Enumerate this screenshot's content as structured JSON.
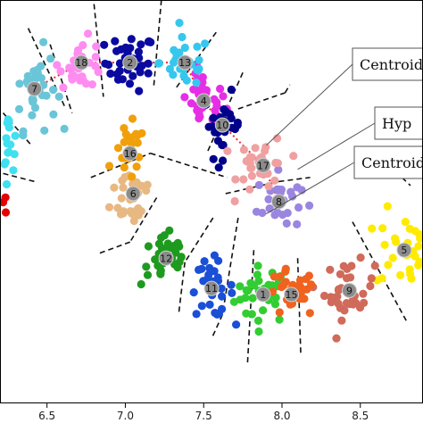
{
  "chart_data": {
    "type": "scatter",
    "xlim": [
      6.2,
      8.9
    ],
    "ylim": [
      0,
      1
    ],
    "x_ticks": [
      "6.5",
      "7.0",
      "7.5",
      "8.0",
      "8.5"
    ],
    "x_tick_values": [
      6.5,
      7.0,
      7.5,
      8.0,
      8.5
    ],
    "grid": false,
    "callouts": [
      {
        "label": "Centroido",
        "cx": 7.9,
        "cy": 0.64
      },
      {
        "label": "Hyp",
        "cx": 8.1,
        "cy": 0.58
      },
      {
        "label": "Centroido",
        "cx": 7.9,
        "cy": 0.47
      }
    ],
    "clusters": [
      {
        "id": "1",
        "color": "#32cd32",
        "cx": 7.88,
        "cy": 0.27,
        "sx": 0.09,
        "sy": 0.035,
        "n": 34
      },
      {
        "id": "2",
        "color": "#0a0aa0",
        "cx": 7.03,
        "cy": 0.845,
        "sx": 0.08,
        "sy": 0.035,
        "n": 34
      },
      {
        "id": "4",
        "color": "#e62ee6",
        "cx": 7.5,
        "cy": 0.75,
        "sx": 0.07,
        "sy": 0.035,
        "n": 30
      },
      {
        "id": "5",
        "color": "#ffeb00",
        "cx": 8.78,
        "cy": 0.38,
        "sx": 0.09,
        "sy": 0.05,
        "n": 34
      },
      {
        "id": "6",
        "color": "#e8b882",
        "cx": 7.05,
        "cy": 0.52,
        "sx": 0.07,
        "sy": 0.04,
        "n": 34
      },
      {
        "id": "7",
        "color": "#6bc5d8",
        "cx": 6.42,
        "cy": 0.78,
        "sx": 0.07,
        "sy": 0.05,
        "n": 34
      },
      {
        "id": "8",
        "color": "#9a86e0",
        "cx": 7.98,
        "cy": 0.5,
        "sx": 0.07,
        "sy": 0.035,
        "n": 30
      },
      {
        "id": "9",
        "color": "#d06a5a",
        "cx": 8.43,
        "cy": 0.28,
        "sx": 0.08,
        "sy": 0.035,
        "n": 34
      },
      {
        "id": "10",
        "color": "#00008b",
        "cx": 7.62,
        "cy": 0.69,
        "sx": 0.06,
        "sy": 0.04,
        "n": 28
      },
      {
        "id": "11",
        "color": "#1a4fd6",
        "cx": 7.55,
        "cy": 0.285,
        "sx": 0.07,
        "sy": 0.035,
        "n": 30
      },
      {
        "id": "12",
        "color": "#1e9a1e",
        "cx": 7.26,
        "cy": 0.36,
        "sx": 0.08,
        "sy": 0.035,
        "n": 34
      },
      {
        "id": "13",
        "color": "#35c7ee",
        "cx": 7.38,
        "cy": 0.845,
        "sx": 0.08,
        "sy": 0.03,
        "n": 30
      },
      {
        "id": "15",
        "color": "#f0621e",
        "cx": 8.06,
        "cy": 0.27,
        "sx": 0.08,
        "sy": 0.03,
        "n": 30
      },
      {
        "id": "16",
        "color": "#f0a00a",
        "cx": 7.03,
        "cy": 0.62,
        "sx": 0.05,
        "sy": 0.035,
        "n": 22
      },
      {
        "id": "17",
        "color": "#f0a0a0",
        "cx": 7.88,
        "cy": 0.59,
        "sx": 0.08,
        "sy": 0.035,
        "n": 32
      },
      {
        "id": "18",
        "color": "#ff8cf0",
        "cx": 6.72,
        "cy": 0.845,
        "sx": 0.07,
        "sy": 0.03,
        "n": 30
      },
      {
        "id": "",
        "color": "#40e0f0",
        "cx": 6.24,
        "cy": 0.64,
        "sx": 0.04,
        "sy": 0.04,
        "n": 22
      },
      {
        "id": "",
        "color": "#e60000",
        "cx": 6.22,
        "cy": 0.51,
        "sx": 0.02,
        "sy": 0.02,
        "n": 7
      },
      {
        "id": "",
        "color": "#c8c8ff",
        "cx": 8.82,
        "cy": 0.585,
        "sx": 0.03,
        "sy": 0.015,
        "n": 3
      }
    ],
    "centroid_path": [
      "7",
      "18",
      "2",
      "13",
      "4",
      "10",
      "17",
      "8"
    ],
    "centroid_path_color": "#e8302e",
    "boundaries": [
      {
        "x1": 6.38,
        "y1": 0.93,
        "x2": 6.62,
        "y2": 0.73
      },
      {
        "x1": 6.52,
        "y1": 0.89,
        "x2": 6.66,
        "y2": 0.72
      },
      {
        "x1": 6.8,
        "y1": 0.99,
        "x2": 6.86,
        "y2": 0.76
      },
      {
        "x1": 7.23,
        "y1": 1.0,
        "x2": 7.18,
        "y2": 0.78
      },
      {
        "x1": 7.58,
        "y1": 0.92,
        "x2": 7.32,
        "y2": 0.78
      },
      {
        "x1": 7.75,
        "y1": 0.82,
        "x2": 7.52,
        "y2": 0.62
      },
      {
        "x1": 6.22,
        "y1": 0.72,
        "x2": 6.4,
        "y2": 0.64
      },
      {
        "x1": 6.22,
        "y1": 0.57,
        "x2": 6.42,
        "y2": 0.55
      },
      {
        "x1": 6.78,
        "y1": 0.56,
        "x2": 7.16,
        "y2": 0.62
      },
      {
        "x1": 7.16,
        "y1": 0.62,
        "x2": 7.65,
        "y2": 0.56
      },
      {
        "x1": 7.2,
        "y1": 0.51,
        "x2": 7.03,
        "y2": 0.4
      },
      {
        "x1": 7.03,
        "y1": 0.4,
        "x2": 6.82,
        "y2": 0.37
      },
      {
        "x1": 7.64,
        "y1": 0.52,
        "x2": 7.98,
        "y2": 0.55
      },
      {
        "x1": 7.98,
        "y1": 0.55,
        "x2": 8.18,
        "y2": 0.56
      },
      {
        "x1": 7.56,
        "y1": 0.46,
        "x2": 7.38,
        "y2": 0.35
      },
      {
        "x1": 7.38,
        "y1": 0.35,
        "x2": 7.34,
        "y2": 0.22
      },
      {
        "x1": 7.72,
        "y1": 0.46,
        "x2": 7.62,
        "y2": 0.22
      },
      {
        "x1": 7.62,
        "y1": 0.22,
        "x2": 7.55,
        "y2": 0.16
      },
      {
        "x1": 7.82,
        "y1": 0.38,
        "x2": 7.78,
        "y2": 0.1
      },
      {
        "x1": 8.1,
        "y1": 0.36,
        "x2": 8.12,
        "y2": 0.12
      },
      {
        "x1": 8.45,
        "y1": 0.45,
        "x2": 8.8,
        "y2": 0.2
      },
      {
        "x1": 8.6,
        "y1": 0.62,
        "x2": 8.82,
        "y2": 0.54
      },
      {
        "x1": 7.72,
        "y1": 0.73,
        "x2": 8.02,
        "y2": 0.77
      },
      {
        "x1": 8.02,
        "y1": 0.77,
        "x2": 8.05,
        "y2": 0.79
      }
    ]
  }
}
